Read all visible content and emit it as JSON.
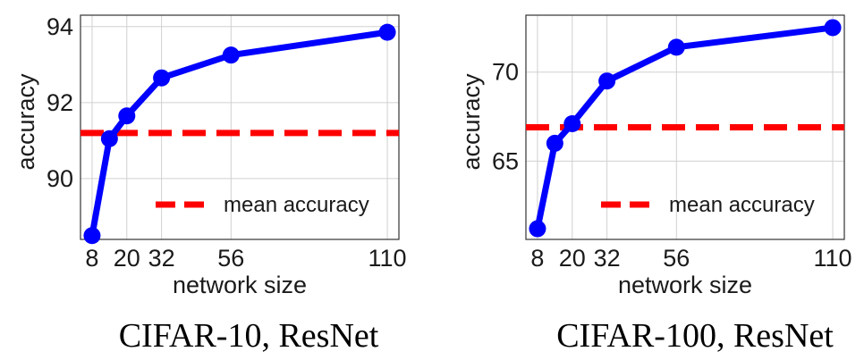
{
  "chart_data": [
    {
      "type": "line",
      "title": "",
      "caption": "CIFAR-10, ResNet",
      "xlabel": "network size",
      "ylabel": "accuracy",
      "x_ticks": [
        8,
        20,
        32,
        56,
        110
      ],
      "y_ticks": [
        90,
        92,
        94
      ],
      "xlim": [
        4,
        114
      ],
      "ylim": [
        88.4,
        94.3
      ],
      "grid": true,
      "legend_position": "lower-right",
      "series": [
        {
          "name": "",
          "color": "#0000ff",
          "x": [
            8,
            14,
            20,
            32,
            56,
            110
          ],
          "y": [
            88.5,
            91.05,
            91.65,
            92.65,
            93.25,
            93.85
          ]
        },
        {
          "name": "mean accuracy",
          "style": "dashed",
          "color": "#ff0000",
          "y_constant": 91.2
        }
      ]
    },
    {
      "type": "line",
      "title": "",
      "caption": "CIFAR-100, ResNet",
      "xlabel": "network size",
      "ylabel": "accuracy",
      "x_ticks": [
        8,
        20,
        32,
        56,
        110
      ],
      "y_ticks": [
        65,
        70
      ],
      "xlim": [
        4,
        114
      ],
      "ylim": [
        60.6,
        73.2
      ],
      "grid": true,
      "legend_position": "lower-right",
      "series": [
        {
          "name": "",
          "color": "#0000ff",
          "x": [
            8,
            14,
            20,
            32,
            56,
            110
          ],
          "y": [
            61.2,
            66.0,
            67.1,
            69.5,
            71.4,
            72.5
          ]
        },
        {
          "name": "mean accuracy",
          "style": "dashed",
          "color": "#ff0000",
          "y_constant": 66.9
        }
      ]
    }
  ]
}
